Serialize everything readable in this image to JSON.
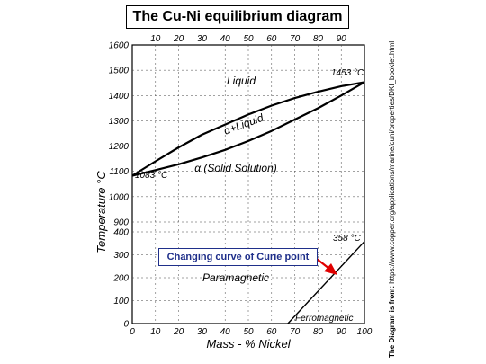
{
  "title": "The Cu-Ni equilibrium diagram",
  "source": {
    "label": "The Diagram is from:",
    "url": "https://www.copper.org/applications/marine/cuni/properties/DKI_booklet.html"
  },
  "callout": {
    "text": "Changing curve of Curie point",
    "color": "#1f2f8a",
    "arrow_color": "#e00000"
  },
  "chart_data": {
    "type": "line",
    "xlabel": "Mass - % Nickel",
    "ylabel": "Temperature °C",
    "x_ticks": [
      0,
      10,
      20,
      30,
      40,
      50,
      60,
      70,
      80,
      90,
      100
    ],
    "upper_panel": {
      "ylim": [
        900,
        1600
      ],
      "y_ticks": [
        900,
        1000,
        1100,
        1200,
        1300,
        1400,
        1500,
        1600
      ],
      "series": [
        {
          "values": [
            [
              0,
              1083
            ],
            [
              10,
              1140
            ],
            [
              20,
              1195
            ],
            [
              30,
              1245
            ],
            [
              40,
              1285
            ],
            [
              50,
              1325
            ],
            [
              60,
              1360
            ],
            [
              70,
              1390
            ],
            [
              80,
              1415
            ],
            [
              90,
              1437
            ],
            [
              100,
              1453
            ]
          ]
        },
        {
          "values": [
            [
              0,
              1083
            ],
            [
              10,
              1105
            ],
            [
              20,
              1128
            ],
            [
              30,
              1155
            ],
            [
              40,
              1185
            ],
            [
              50,
              1220
            ],
            [
              60,
              1260
            ],
            [
              70,
              1305
            ],
            [
              80,
              1350
            ],
            [
              90,
              1400
            ],
            [
              100,
              1453
            ]
          ]
        }
      ],
      "labels": {
        "liquid": "Liquid",
        "two_phase": "α+Liquid",
        "solid": "α (Solid Solution)",
        "cu_melt": "1083 °C",
        "ni_melt": "1453 °C"
      }
    },
    "lower_panel": {
      "ylim": [
        0,
        400
      ],
      "y_ticks": [
        0,
        100,
        200,
        300,
        400
      ],
      "series": [
        {
          "values": [
            [
              67,
              0
            ],
            [
              100,
              358
            ]
          ]
        }
      ],
      "labels": {
        "para": "Paramagnetic",
        "ferro": "Ferromagnetic",
        "curie": "358 °C"
      }
    }
  }
}
